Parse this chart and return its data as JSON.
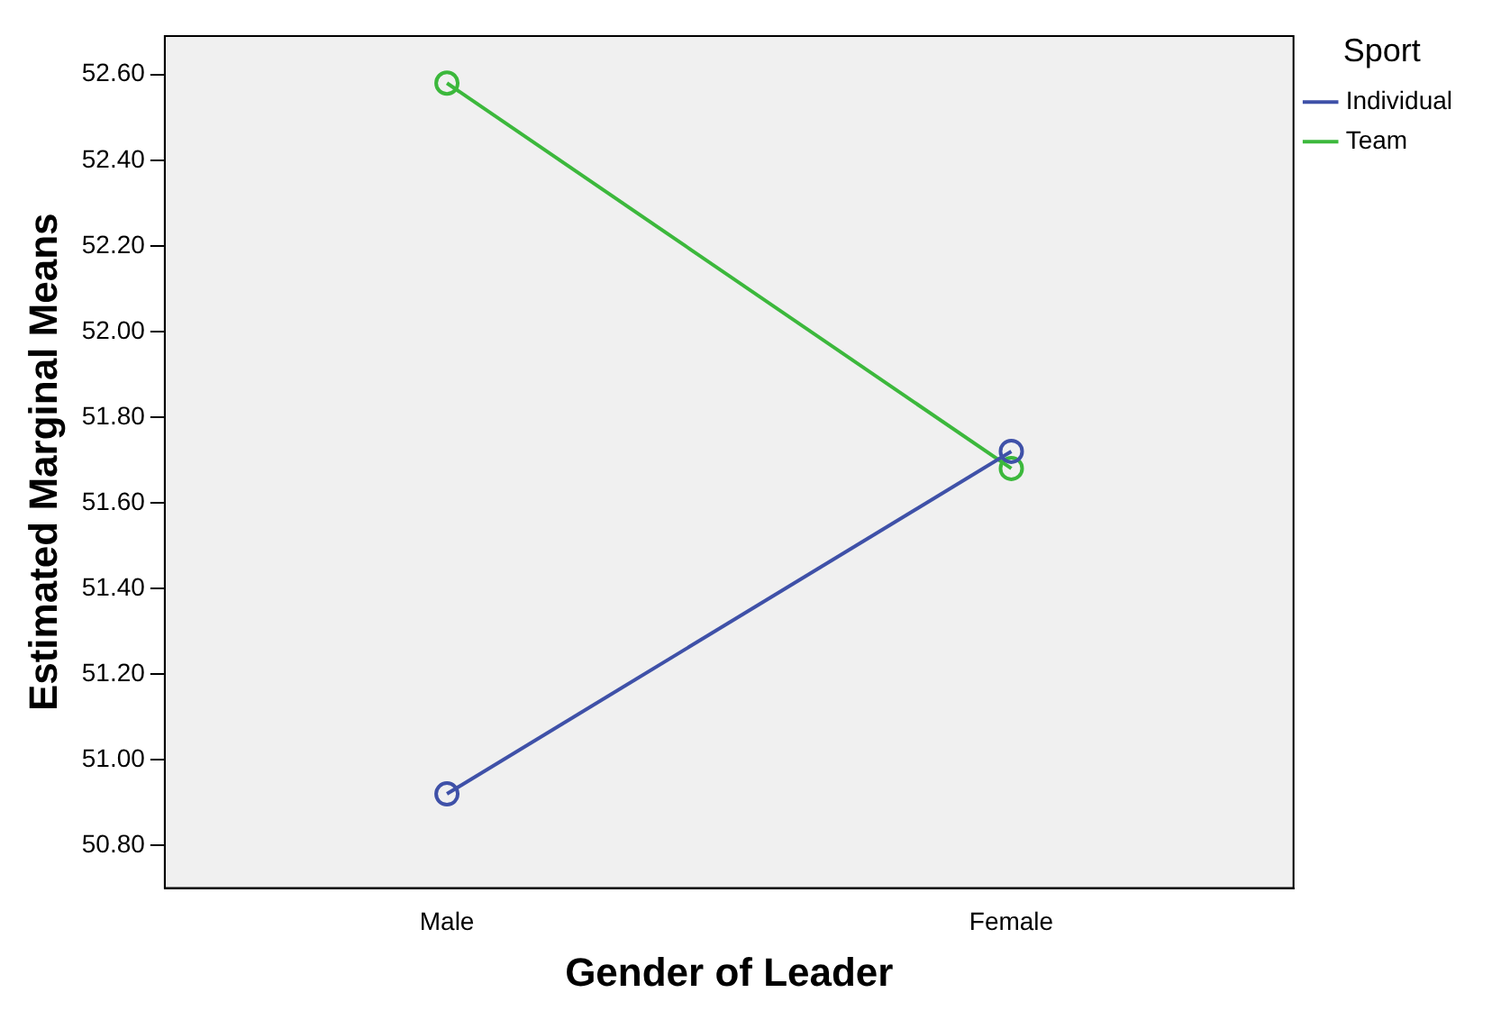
{
  "chart_data": {
    "type": "line",
    "xlabel": "Gender of Leader",
    "ylabel": "Estimated Marginal Means",
    "legend_title": "Sport",
    "categories": [
      "Male",
      "Female"
    ],
    "series": [
      {
        "name": "Individual",
        "color": "#3f51a8",
        "values": [
          50.92,
          51.72
        ]
      },
      {
        "name": "Team",
        "color": "#3cb83c",
        "values": [
          52.58,
          51.68
        ]
      }
    ],
    "ylim": [
      50.7,
      52.69
    ],
    "yticks": [
      {
        "value": 50.8,
        "label": "50.80"
      },
      {
        "value": 51,
        "label": "51.00"
      },
      {
        "value": 51.2,
        "label": "51.20"
      },
      {
        "value": 51.4,
        "label": "51.40"
      },
      {
        "value": 51.6,
        "label": "51.60"
      },
      {
        "value": 51.8,
        "label": "51.80"
      },
      {
        "value": 52,
        "label": "52.00"
      },
      {
        "value": 52.2,
        "label": "52.20"
      },
      {
        "value": 52.4,
        "label": "52.40"
      },
      {
        "value": 52.6,
        "label": "52.60"
      }
    ],
    "grid": false,
    "legend": "top right",
    "marker": "circle",
    "line_style": "solid"
  }
}
